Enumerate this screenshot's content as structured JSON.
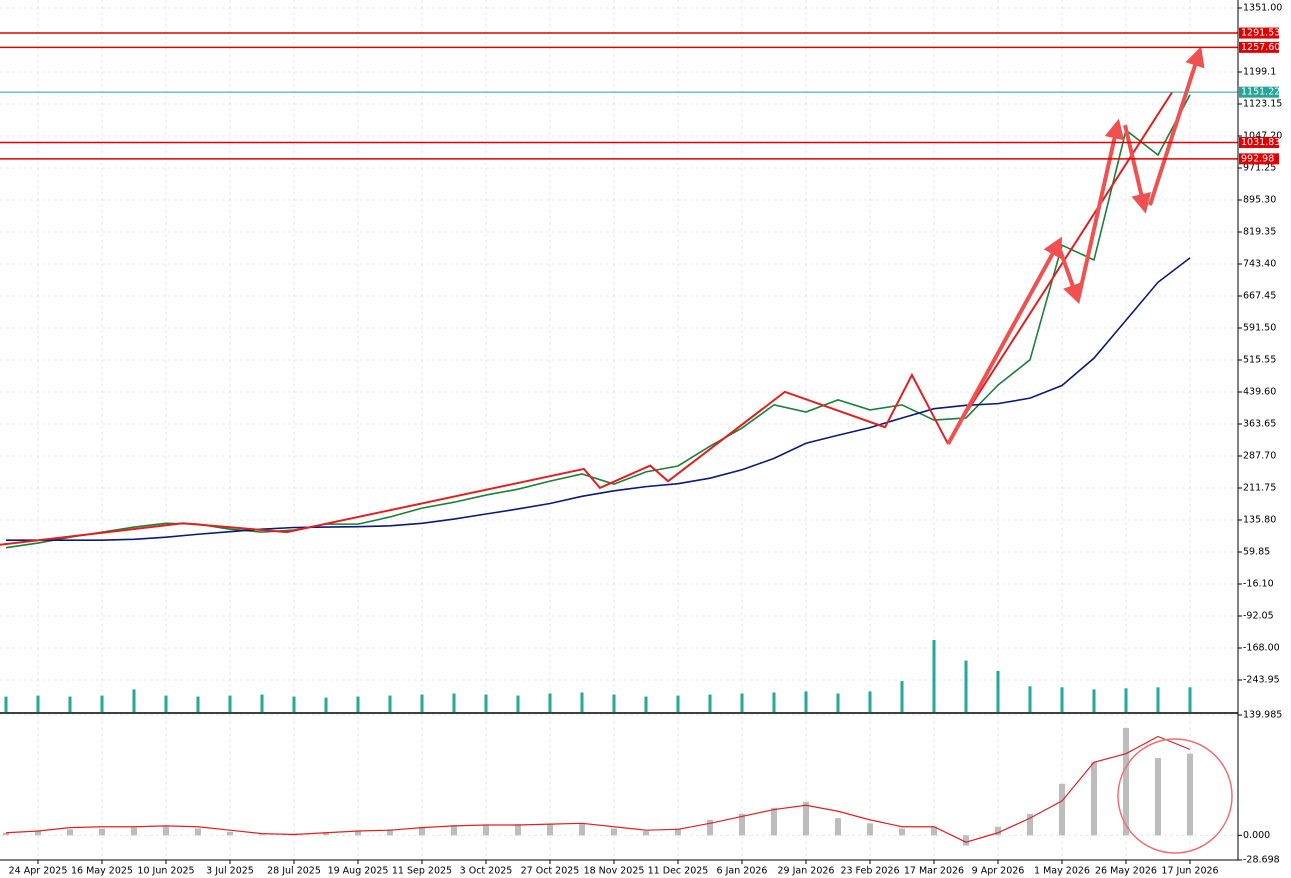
{
  "chart_data": [
    {
      "type": "line",
      "categories": [
        null,
        "24 Apr 2025",
        null,
        "16 May 2025",
        null,
        "10 Jun 2025",
        null,
        "3 Jul 2025",
        null,
        "28 Jul 2025",
        null,
        "19 Aug 2025",
        null,
        "11 Sep 2025",
        null,
        "3 Oct 2025",
        null,
        "27 Oct 2025",
        null,
        "18 Nov 2025",
        null,
        "11 Dec 2025",
        null,
        "6 Jan 2026",
        null,
        "29 Jan 2026",
        null,
        "23 Feb 2026",
        null,
        "17 Mar 2026",
        null,
        "9 Apr 2026",
        null,
        "1 May 2026",
        null,
        "26 May 2026",
        null,
        "17 Jun 2026"
      ],
      "series": [
        {
          "color": "#1b7f3a",
          "values": [
            70,
            81,
            95,
            107,
            119,
            128,
            126,
            114,
            107,
            112,
            126,
            126,
            143,
            164,
            178,
            195,
            209,
            228,
            245,
            221,
            250,
            264,
            311,
            354,
            409,
            392,
            421,
            397,
            409,
            373,
            378,
            456,
            516,
            788,
            753,
            1061,
            1002,
            1145
          ]
        },
        {
          "color": "#0a1a7a",
          "values": [
            88,
            88,
            88,
            88,
            90,
            95,
            102,
            108,
            114,
            118,
            119,
            120,
            122,
            128,
            138,
            150,
            162,
            175,
            192,
            205,
            215,
            222,
            235,
            255,
            282,
            318,
            337,
            355,
            378,
            400,
            408,
            412,
            425,
            455,
            520,
            610,
            700,
            758
          ]
        }
      ],
      "volume": {
        "color": "#26a69a",
        "values": [
          15,
          16,
          15,
          16,
          22,
          16,
          15,
          16,
          17,
          15,
          14,
          15,
          16,
          17,
          18,
          17,
          16,
          18,
          19,
          17,
          15,
          16,
          17,
          18,
          19,
          20,
          18,
          20,
          30,
          70,
          50,
          40,
          25,
          24,
          22,
          23,
          24,
          24
        ]
      },
      "ylim": [
        -319.9,
        1369.99
      ],
      "yticks": [
        {
          "value": 1351,
          "label": "1351.00"
        },
        1199.1,
        1123.15,
        {
          "value": 1047.2,
          "label": "1047.20"
        },
        971.25,
        {
          "value": 895.3,
          "label": "895.30"
        },
        819.35,
        {
          "value": 743.4,
          "label": "743.40"
        },
        667.45,
        {
          "value": 591.5,
          "label": "591.50"
        },
        515.55,
        {
          "value": 439.6,
          "label": "439.60"
        },
        363.65,
        {
          "value": 287.7,
          "label": "287.70"
        },
        211.75,
        {
          "value": 135.8,
          "label": "135.80"
        },
        59.85,
        {
          "value": -16.1,
          "label": "-16.10"
        },
        -92.05,
        {
          "value": -168,
          "label": "-168.00"
        },
        -243.95
      ],
      "levels": [
        {
          "value": 1291.53,
          "color": "#e00000"
        },
        {
          "value": 1257.6,
          "label": "1257.60",
          "color": "#e00000"
        },
        {
          "value": 1151.22,
          "color": "#26a69a"
        },
        {
          "value": 1031.83,
          "color": "#e00000"
        },
        {
          "value": 992.98,
          "color": "#e00000"
        }
      ],
      "drawings": [
        {
          "type": "polyline",
          "color": "#e02020",
          "points": [
            [
              -0.19,
              77
            ],
            [
              5.53,
              128
            ],
            [
              8.78,
              107
            ],
            [
              18.06,
              257
            ],
            [
              18.56,
              212
            ],
            [
              20.13,
              265
            ],
            [
              20.69,
              228
            ],
            [
              24.34,
              440
            ],
            [
              27.47,
              356
            ],
            [
              28.31,
              480
            ],
            [
              29.44,
              316
            ]
          ]
        },
        {
          "type": "polyline",
          "color": "#e02020",
          "points": [
            [
              29.66,
              349
            ],
            [
              36.44,
              1151
            ]
          ]
        },
        {
          "type": "arrow",
          "color": "#f05050",
          "points": [
            [
              29.44,
              316
            ],
            [
              32.94,
              800
            ]
          ]
        },
        {
          "type": "arrow",
          "color": "#f05050",
          "points": [
            [
              32.94,
              776
            ],
            [
              33.5,
              657
            ]
          ]
        },
        {
          "type": "arrow",
          "color": "#f05050",
          "points": [
            [
              33.5,
              657
            ],
            [
              34.75,
              1079
            ]
          ]
        },
        {
          "type": "arrow",
          "color": "#f05050",
          "points": [
            [
              34.97,
              1073
            ],
            [
              35.59,
              872
            ]
          ]
        },
        {
          "type": "arrow",
          "color": "#f05050",
          "points": [
            [
              35.75,
              883
            ],
            [
              37.31,
              1251
            ]
          ]
        }
      ],
      "grid": true
    },
    {
      "type": "bar",
      "series": [
        {
          "color": "#bdbdbd",
          "values": [
            3,
            5,
            7,
            8,
            9,
            10,
            8,
            4,
            1,
            2,
            4,
            5,
            7,
            10,
            12,
            12,
            13,
            13,
            14,
            8,
            5,
            8,
            18,
            25,
            32,
            39,
            20,
            14,
            8,
            10,
            -12,
            10,
            25,
            60,
            85,
            125,
            90,
            95
          ]
        },
        {
          "type": "line",
          "color": "#e02020",
          "values": [
            3,
            5,
            9,
            10,
            10,
            11,
            10,
            6,
            2,
            1,
            3,
            5,
            6,
            9,
            11,
            12,
            12,
            13,
            14,
            10,
            6,
            7,
            14,
            22,
            30,
            35,
            28,
            18,
            10,
            10,
            -8,
            3,
            20,
            40,
            85,
            95,
            115,
            100
          ]
        }
      ],
      "ylim": [
        -28.698,
        139.985
      ],
      "yticks": [
        139.985,
        {
          "value": 0,
          "label": "0.000"
        },
        -28.698
      ]
    }
  ]
}
